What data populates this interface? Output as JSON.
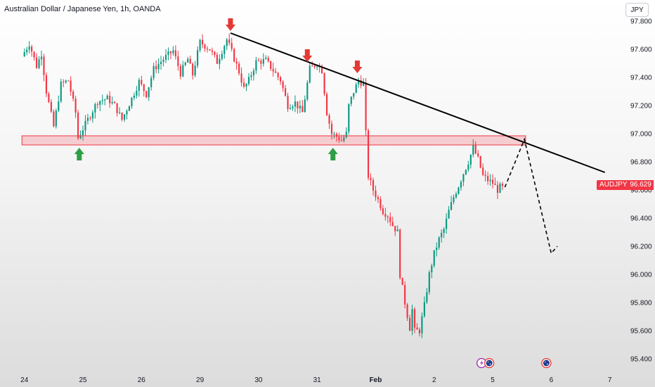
{
  "header": {
    "title": "Australian Dollar / Japanese Yen, 1h, OANDA",
    "currency_button": "JPY"
  },
  "last_price": {
    "symbol": "AUDJPY",
    "value": "96.629",
    "price": 96.629
  },
  "colors": {
    "up": "#089981",
    "down": "#f23645",
    "zone_fill": "rgba(242,54,69,0.22)",
    "zone_border": "#f23645",
    "trendline": "#000000",
    "arrow_down": "#e53935",
    "arrow_up": "#2e9e44"
  },
  "chart_data": {
    "type": "candlestick",
    "title": "Australian Dollar / Japanese Yen, 1h, OANDA",
    "y_tick_labels": [
      "97.800",
      "97.600",
      "97.400",
      "97.200",
      "97.000",
      "96.800",
      "96.600",
      "96.400",
      "96.200",
      "96.000",
      "95.800",
      "95.600",
      "95.400"
    ],
    "y_ticks": [
      97.8,
      97.6,
      97.4,
      97.2,
      97.0,
      96.8,
      96.6,
      96.4,
      96.2,
      96.0,
      95.8,
      95.6,
      95.4
    ],
    "ylim": [
      95.35,
      97.88
    ],
    "x_tick_labels": [
      "24",
      "25",
      "26",
      "29",
      "30",
      "31",
      "Feb",
      "2",
      "5",
      "6",
      "7"
    ],
    "x_tick_bold": [
      false,
      false,
      false,
      false,
      false,
      false,
      true,
      false,
      false,
      false,
      false
    ],
    "x_ticks": [
      0,
      24,
      48,
      72,
      96,
      120,
      144,
      168,
      192,
      216,
      240
    ],
    "xlim": [
      -10,
      245
    ],
    "ohlc_path": [
      [
        0,
        97.55
      ],
      [
        3,
        97.64
      ],
      [
        6,
        97.48
      ],
      [
        8,
        97.57
      ],
      [
        10,
        97.3
      ],
      [
        13,
        97.05
      ],
      [
        16,
        97.35
      ],
      [
        19,
        97.38
      ],
      [
        22,
        97.15
      ],
      [
        23,
        96.97
      ],
      [
        27,
        97.1
      ],
      [
        31,
        97.23
      ],
      [
        35,
        97.25
      ],
      [
        38,
        97.2
      ],
      [
        41,
        97.1
      ],
      [
        45,
        97.25
      ],
      [
        48,
        97.37
      ],
      [
        51,
        97.28
      ],
      [
        54,
        97.46
      ],
      [
        58,
        97.53
      ],
      [
        62,
        97.59
      ],
      [
        65,
        97.43
      ],
      [
        68,
        97.53
      ],
      [
        70,
        97.42
      ],
      [
        73,
        97.65
      ],
      [
        77,
        97.6
      ],
      [
        80,
        97.51
      ],
      [
        84,
        97.67
      ],
      [
        86,
        97.58
      ],
      [
        89,
        97.44
      ],
      [
        91,
        97.32
      ],
      [
        93,
        97.38
      ],
      [
        96,
        97.51
      ],
      [
        100,
        97.52
      ],
      [
        103,
        97.45
      ],
      [
        106,
        97.38
      ],
      [
        109,
        97.2
      ],
      [
        112,
        97.22
      ],
      [
        115,
        97.15
      ],
      [
        118,
        97.46
      ],
      [
        121,
        97.5
      ],
      [
        123,
        97.45
      ],
      [
        125,
        97.15
      ],
      [
        127,
        97.0
      ],
      [
        129,
        96.98
      ],
      [
        131,
        96.95
      ],
      [
        133,
        97.0
      ],
      [
        134,
        97.2
      ],
      [
        136,
        97.3
      ],
      [
        138,
        97.38
      ],
      [
        140,
        97.35
      ],
      [
        141,
        97.0
      ],
      [
        142,
        96.7
      ],
      [
        144,
        96.6
      ],
      [
        146,
        96.53
      ],
      [
        148,
        96.45
      ],
      [
        150,
        96.42
      ],
      [
        152,
        96.35
      ],
      [
        154,
        96.3
      ],
      [
        155,
        96.0
      ],
      [
        157,
        95.8
      ],
      [
        159,
        95.62
      ],
      [
        160,
        95.75
      ],
      [
        161,
        95.6
      ],
      [
        163,
        95.6
      ],
      [
        165,
        95.78
      ],
      [
        167,
        96.0
      ],
      [
        169,
        96.15
      ],
      [
        171,
        96.25
      ],
      [
        173,
        96.32
      ],
      [
        175,
        96.45
      ],
      [
        177,
        96.55
      ],
      [
        179,
        96.63
      ],
      [
        181,
        96.72
      ],
      [
        183,
        96.8
      ],
      [
        185,
        96.9
      ],
      [
        187,
        96.82
      ],
      [
        189,
        96.7
      ],
      [
        191,
        96.67
      ],
      [
        193,
        96.65
      ],
      [
        195,
        96.6
      ],
      [
        196,
        96.62
      ]
    ],
    "resistance_zone": {
      "top": 96.985,
      "bottom": 96.92,
      "from_x": -1,
      "to_x": 205.5
    },
    "trendline": {
      "from": [
        84.5,
        97.715
      ],
      "to": [
        238,
        96.725
      ]
    },
    "projection": [
      [
        197,
        96.62
      ],
      [
        205,
        96.96
      ],
      [
        216,
        96.15
      ],
      [
        218.5,
        96.2
      ]
    ],
    "markers": [
      {
        "kind": "down",
        "x": 84.5,
        "price": 97.72
      },
      {
        "kind": "down",
        "x": 116,
        "price": 97.5
      },
      {
        "kind": "down",
        "x": 136.5,
        "price": 97.42
      },
      {
        "kind": "up",
        "x": 22.5,
        "price": 96.91
      },
      {
        "kind": "up",
        "x": 126.5,
        "price": 96.91
      }
    ],
    "event_icons": [
      {
        "x": 189,
        "names": [
          "economic-event-icon",
          "au-flag-icon"
        ]
      },
      {
        "x": 214,
        "names": [
          "au-flag-icon"
        ]
      }
    ],
    "grid": false
  }
}
